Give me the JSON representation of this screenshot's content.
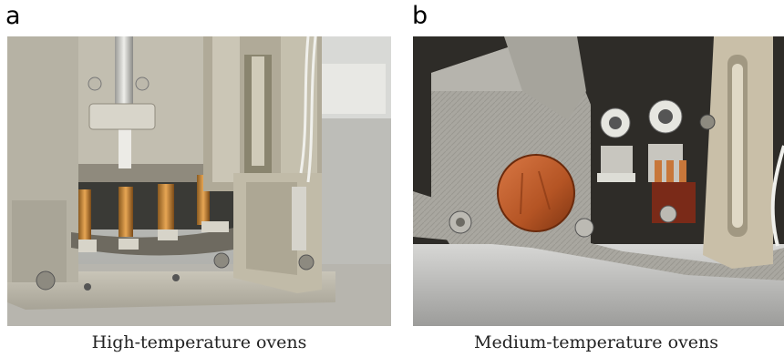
{
  "panels": [
    {
      "letter": "a",
      "caption": "High-temperature ovens"
    },
    {
      "letter": "b",
      "caption": "Medium-temperature ovens"
    }
  ]
}
